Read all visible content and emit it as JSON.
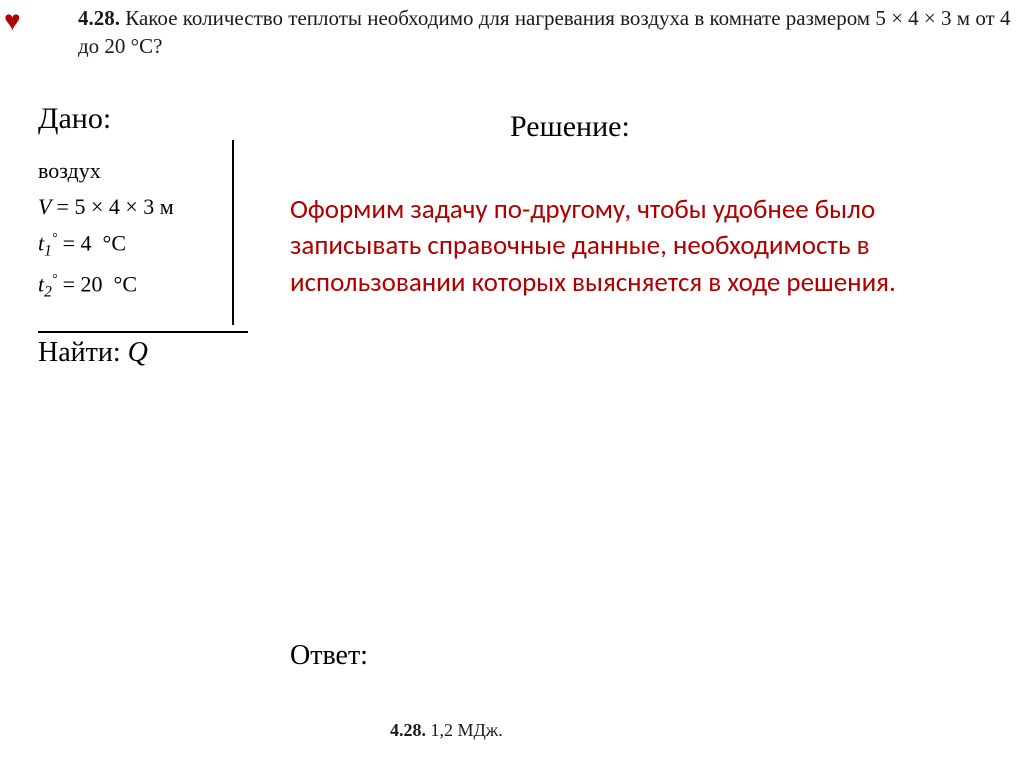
{
  "heart_glyph": "♥",
  "problem": {
    "number": "4.28.",
    "text": "Какое количество теплоты необходимо для нагревания воздуха в комнате размером 5 × 4 × 3 м от 4 до 20 °C?"
  },
  "given": {
    "title": "Дано:",
    "substance": "воздух",
    "volume_expr": "V = 5 × 4 × 3 м",
    "t1_full": "t₁° = 4  °C",
    "t2_full": "t₂° = 20  °C",
    "find": "Найти:",
    "find_var": "Q"
  },
  "solution_title": "Решение:",
  "commentary": "Оформим задачу по-другому, чтобы удобнее было записывать справочные данные, необходимость в использовании которых выясняется в ходе решения.",
  "answer_label": "Ответ:",
  "answer_key": {
    "number": "4.28.",
    "value": "1,2 МДж."
  },
  "colors": {
    "heart": "#b00000",
    "commentary": "#b00000",
    "text": "#000000",
    "problem_text": "#1a1a1a",
    "background": "#ffffff"
  },
  "typography": {
    "serif": "Times New Roman",
    "sans": "Calibri",
    "title_size_pt": 30,
    "body_size_pt": 27,
    "problem_size_pt": 21,
    "formula_size_pt": 22,
    "answer_key_size_pt": 18
  }
}
